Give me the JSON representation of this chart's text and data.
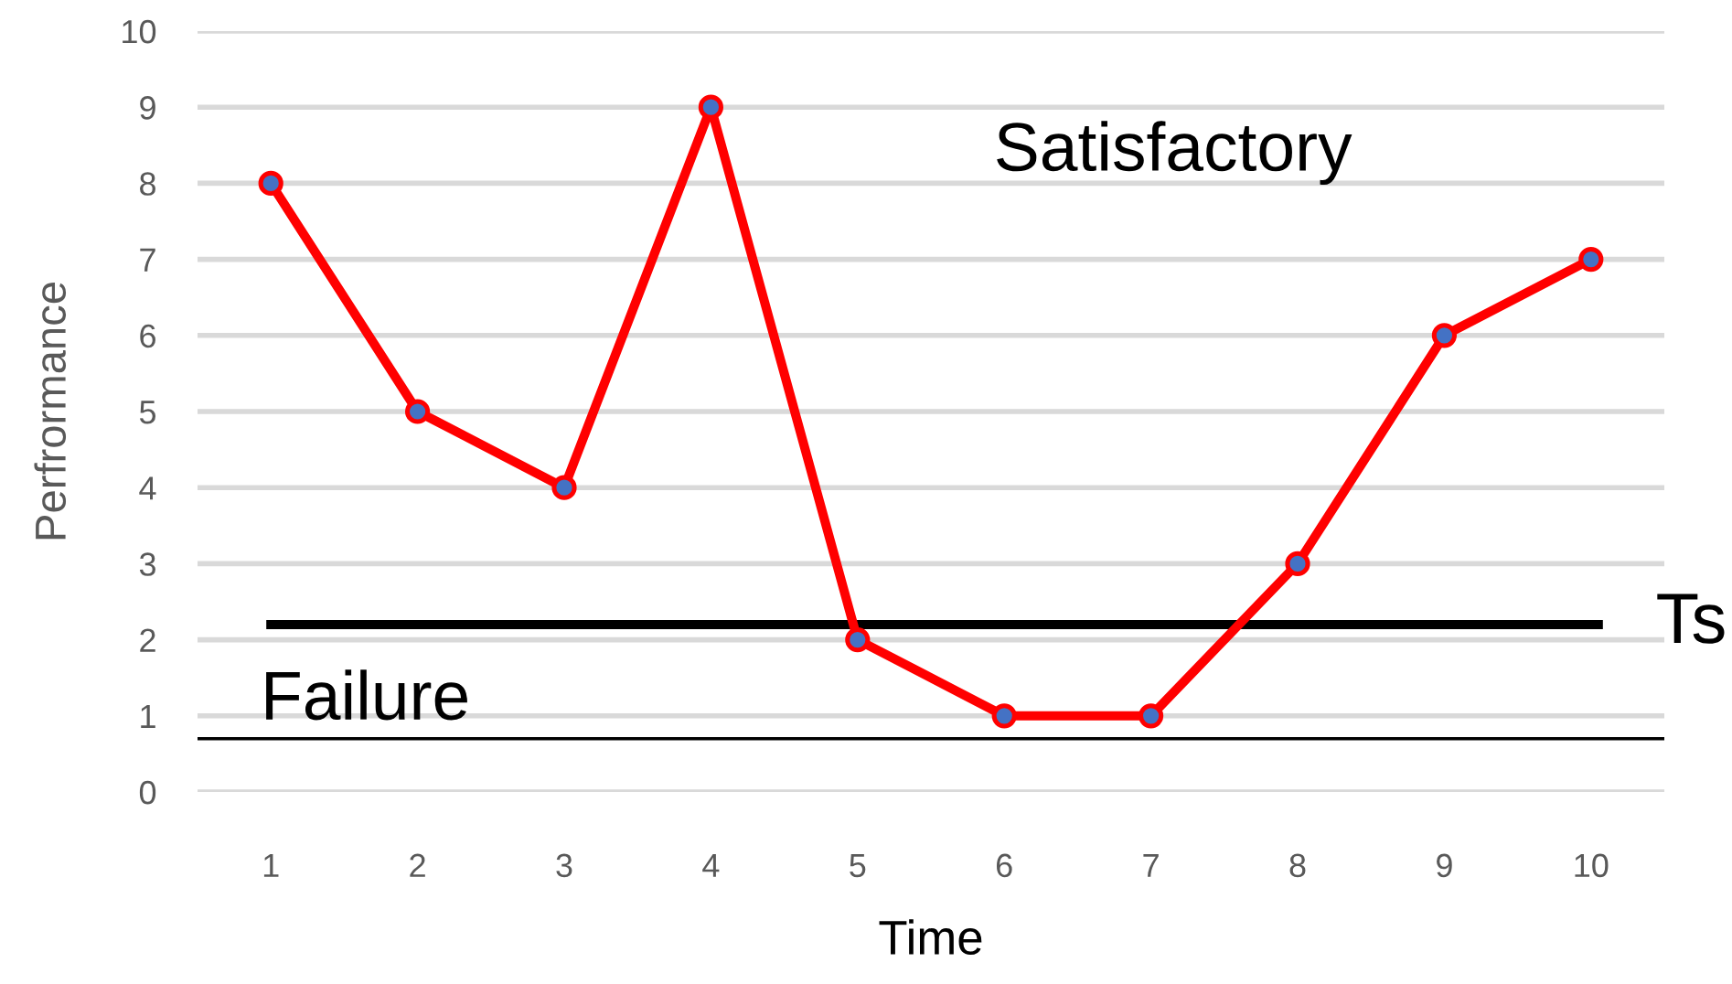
{
  "chart_data": {
    "type": "line",
    "xlabel": "Time",
    "ylabel": "Perfrormance",
    "categories": [
      "1",
      "2",
      "3",
      "4",
      "5",
      "6",
      "7",
      "8",
      "9",
      "10"
    ],
    "series": [
      {
        "color": "#ff0000",
        "colors": [
          "#4472c4",
          "#4472c4",
          "#4472c4",
          "#4472c4",
          "#4472c4",
          "#4472c4",
          "#4472c4",
          "#4472c4",
          "#4472c4",
          "#4472c4"
        ],
        "values": [
          8,
          5,
          4,
          9,
          2,
          1,
          1,
          3,
          6,
          7
        ]
      }
    ],
    "ylim": [
      0,
      10
    ],
    "yticks": [
      0,
      1,
      2,
      3,
      4,
      5,
      6,
      7,
      8,
      9,
      10
    ],
    "grid": "y",
    "marker": "circle",
    "line_style": "solid",
    "ref_lines": [
      {
        "axis": "y",
        "value": 2.2,
        "label": "Ts",
        "color": "#000000"
      },
      {
        "axis": "y",
        "value": 0.7,
        "label": "Failure",
        "color": "#000000"
      }
    ],
    "annotations": [
      "Satisfactory"
    ]
  }
}
